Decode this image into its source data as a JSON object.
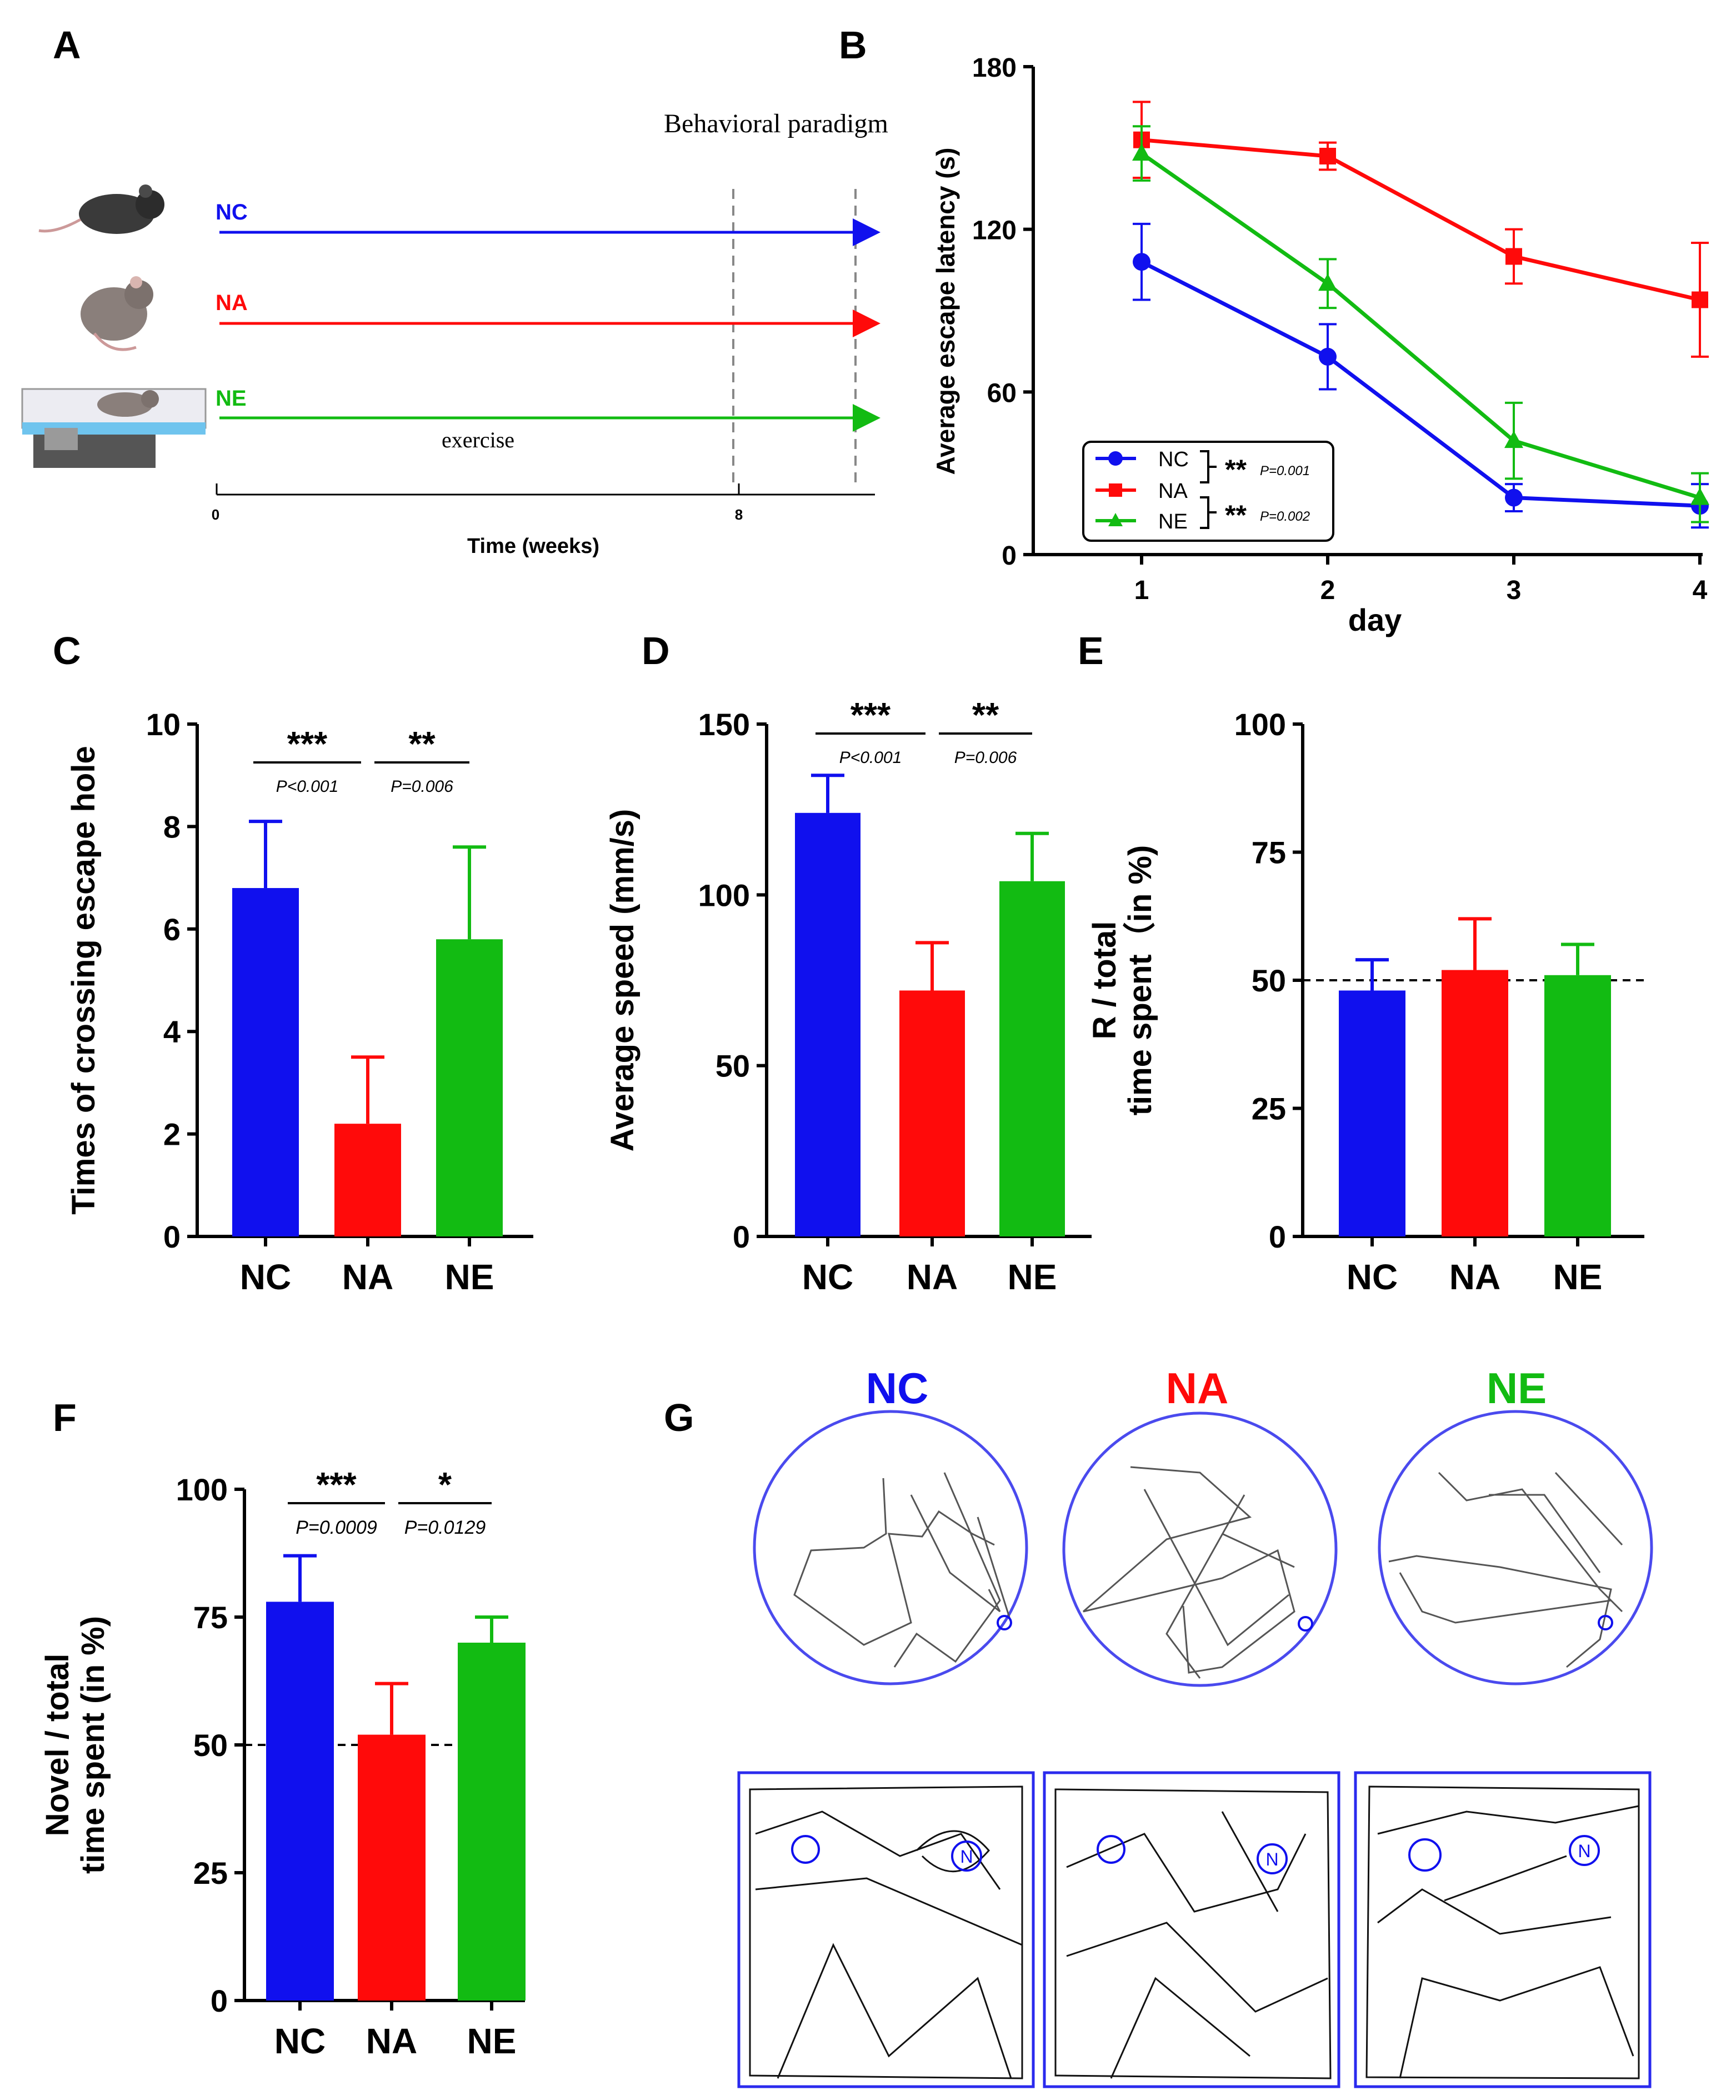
{
  "colors": {
    "NC": "#1010ee",
    "NA": "#ff0a0a",
    "NE": "#12bb12",
    "axis": "#000000",
    "ring": "#4a4aee",
    "path": "#555555"
  },
  "panels": {
    "A": "A",
    "B": "B",
    "C": "C",
    "D": "D",
    "E": "E",
    "F": "F",
    "G": "G"
  },
  "panel_a": {
    "title": "Behavioral paradigm",
    "groups": [
      "NC",
      "NA",
      "NE"
    ],
    "exercise": "exercise",
    "tick0": "0",
    "tick8": "8",
    "xlabel": "Time (weeks)"
  },
  "chart_data": [
    {
      "id": "B",
      "type": "line",
      "ylabel": "Average escape latency (s)",
      "xlabel": "day",
      "x": [
        1,
        2,
        3,
        4
      ],
      "xticks": [
        "1",
        "2",
        "3",
        "4"
      ],
      "yticks": [
        "0",
        "60",
        "120",
        "180"
      ],
      "ylim": [
        0,
        180
      ],
      "series": [
        {
          "name": "NC",
          "values": [
            108,
            73,
            21,
            18
          ],
          "err": [
            14,
            12,
            5,
            8
          ]
        },
        {
          "name": "NA",
          "values": [
            153,
            147,
            110,
            94
          ],
          "err": [
            14,
            5,
            10,
            21
          ]
        },
        {
          "name": "NE",
          "values": [
            148,
            100,
            42,
            21
          ],
          "err": [
            10,
            9,
            14,
            9
          ]
        }
      ],
      "legend_position": "bottom-left",
      "sig_stars": [
        "**",
        "**"
      ],
      "sig_p": [
        "P=0.001",
        "P=0.002"
      ]
    },
    {
      "id": "C",
      "type": "bar",
      "ylabel": "Times of crossing escape hole",
      "categories": [
        "NC",
        "NA",
        "NE"
      ],
      "values": [
        6.8,
        2.2,
        5.8
      ],
      "err": [
        1.3,
        1.3,
        1.8
      ],
      "ylim": [
        0,
        10
      ],
      "yticks": [
        "0",
        "2",
        "4",
        "6",
        "8",
        "10"
      ],
      "sig_stars": [
        "***",
        "**"
      ],
      "sig_p": [
        "P<0.001",
        "P=0.006"
      ]
    },
    {
      "id": "D",
      "type": "bar",
      "ylabel": "Average speed (mm/s)",
      "categories": [
        "NC",
        "NA",
        "NE"
      ],
      "values": [
        124,
        72,
        104
      ],
      "err": [
        11,
        14,
        14
      ],
      "ylim": [
        0,
        150
      ],
      "yticks": [
        "0",
        "50",
        "100",
        "150"
      ],
      "sig_stars": [
        "***",
        "**"
      ],
      "sig_p": [
        "P<0.001",
        "P=0.006"
      ]
    },
    {
      "id": "E",
      "type": "bar",
      "ylabel": [
        "R / total",
        "time spent（in %)"
      ],
      "categories": [
        "NC",
        "NA",
        "NE"
      ],
      "values": [
        48,
        52,
        51
      ],
      "err": [
        6,
        10,
        6
      ],
      "ylim": [
        0,
        100
      ],
      "yticks": [
        "0",
        "25",
        "50",
        "75",
        "100"
      ],
      "reference_line": 50
    },
    {
      "id": "F",
      "type": "bar",
      "ylabel": [
        "Novel / total",
        "time spent  (in %)"
      ],
      "categories": [
        "NC",
        "NA",
        "NE"
      ],
      "values": [
        78,
        52,
        70
      ],
      "err": [
        9,
        10,
        5
      ],
      "ylim": [
        0,
        100
      ],
      "yticks": [
        "0",
        "25",
        "50",
        "75",
        "100"
      ],
      "reference_line": 50,
      "sig_stars": [
        "***",
        "*"
      ],
      "sig_p": [
        "P=0.0009",
        "P=0.0129"
      ]
    }
  ],
  "panel_g": {
    "labels": [
      "NC",
      "NA",
      "NE"
    ],
    "novel_marker": "N"
  }
}
